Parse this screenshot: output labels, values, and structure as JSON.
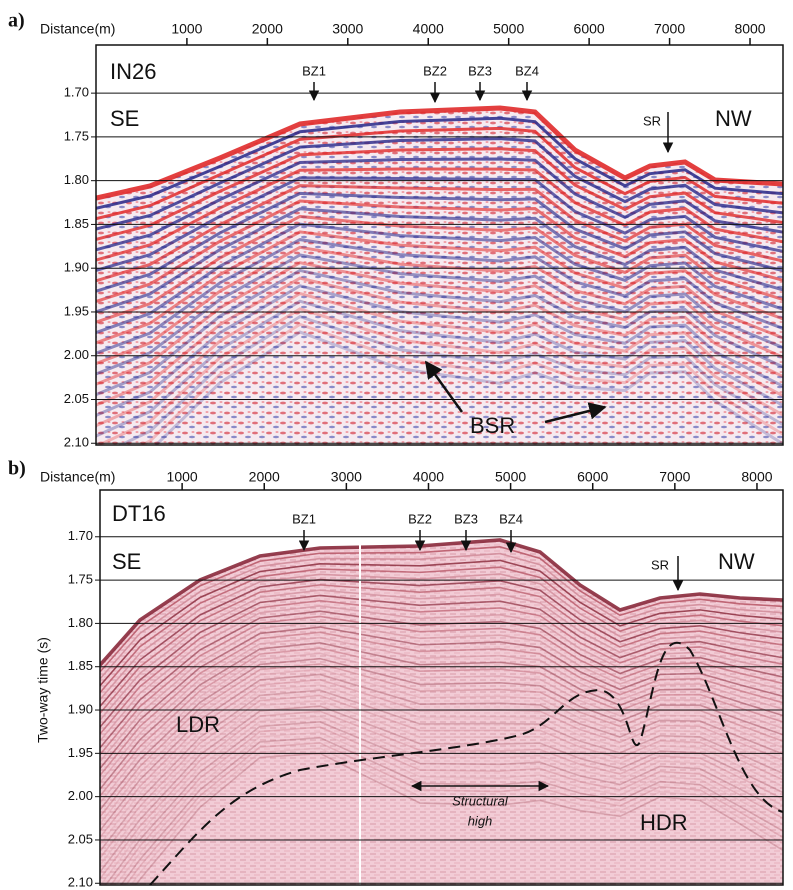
{
  "panels": [
    {
      "label": "a)",
      "axis_title": "Distance(m)",
      "section": "IN26",
      "left_dir": "SE",
      "right_dir": "NW",
      "markers": [
        "BZ1",
        "BZ2",
        "BZ3",
        "BZ4",
        "SR"
      ],
      "annotations": [
        "BSR"
      ],
      "xlim": [
        -130,
        8410
      ],
      "ylim": [
        1.645,
        2.102
      ],
      "xticks": [
        1000,
        2000,
        3000,
        4000,
        5000,
        6000,
        7000,
        8000
      ],
      "yticks": [
        {
          "value": 1.7,
          "label": "1.70"
        },
        {
          "value": 1.75,
          "label": "1.75"
        },
        {
          "value": 1.8,
          "label": "1.80"
        },
        {
          "value": 1.85,
          "label": "1.85"
        },
        {
          "value": 1.9,
          "label": "1.90"
        },
        {
          "value": 1.95,
          "label": "1.95"
        },
        {
          "value": 2.0,
          "label": "2.00"
        },
        {
          "value": 2.05,
          "label": "2.05"
        },
        {
          "value": 2.1,
          "label": "2.10"
        }
      ]
    },
    {
      "label": "b)",
      "axis_title": "Distance(m)",
      "section": "DT16",
      "left_dir": "SE",
      "right_dir": "NW",
      "markers": [
        "BZ1",
        "BZ2",
        "BZ3",
        "BZ4",
        "SR"
      ],
      "annotations": [
        "LDR",
        "HDR",
        "Structural",
        "high"
      ],
      "y_axis_title": "Two-way time (s)",
      "xlim": [
        0,
        8317
      ],
      "ylim": [
        1.646,
        2.102
      ],
      "xticks": [
        1000,
        2000,
        3000,
        4000,
        5000,
        6000,
        7000,
        8000
      ],
      "yticks": [
        {
          "value": 1.7,
          "label": "1.70"
        },
        {
          "value": 1.75,
          "label": "1.75"
        },
        {
          "value": 1.8,
          "label": "1.80"
        },
        {
          "value": 1.85,
          "label": "1.85"
        },
        {
          "value": 1.9,
          "label": "1.90"
        },
        {
          "value": 1.95,
          "label": "1.95"
        },
        {
          "value": 2.0,
          "label": "2.00"
        },
        {
          "value": 2.05,
          "label": "2.05"
        },
        {
          "value": 2.1,
          "label": "2.10"
        }
      ]
    }
  ]
}
